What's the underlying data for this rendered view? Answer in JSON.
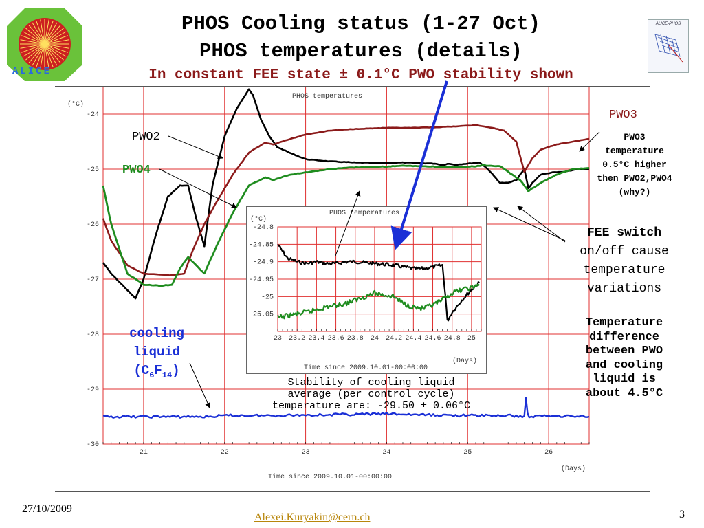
{
  "slide": {
    "title1": "PHOS Cooling status (1-27 Oct)",
    "title2": "PHOS temperatures (details)",
    "title3": "In constant FEE state ± 0.1°C PWO stability shown",
    "date": "27/10/2009",
    "author_email": "Alexei.Kuryakin@cern.ch",
    "page_number": "3",
    "logo_left_text": "ALICE",
    "logo_right_text": "ALICE-PHOS"
  },
  "annotations": {
    "pwo2": "PWO2",
    "pwo4": "PWO4",
    "pwo3": "PWO3",
    "pwo3_note": [
      "PWO3",
      "temperature",
      "0.5°C higher",
      "then PWO2,PWO4",
      "(why?)"
    ],
    "fee_note": [
      "FEE switch",
      "on/off cause",
      "temperature",
      "variations"
    ],
    "diff_note": [
      "Temperature",
      "difference",
      "between PWO",
      "and cooling",
      "liquid is",
      "about 4.5°C"
    ],
    "cooling_word1": "cooling",
    "cooling_word2": "liquid",
    "cooling_formula_open": "(C",
    "cooling_sub1": "6",
    "cooling_F": "F",
    "cooling_sub2": "14",
    "cooling_formula_close": ")",
    "stability_note": [
      "Stability of cooling liquid",
      "average (per control cycle)",
      "temperature are: -29.50 ± 0.06°C"
    ]
  },
  "colors": {
    "pwo2": "#000000",
    "pwo3": "#8b1a1a",
    "pwo4": "#1e8c1e",
    "cooling": "#1a2fd6",
    "arrow": "#1a2fd6",
    "grid": "#e03030",
    "title_red": "#8b1a1a"
  },
  "chart_data": [
    {
      "type": "line",
      "title": "PHOS temperatures",
      "xlabel": "Time since 2009.10.01-00:00:00",
      "xunit": "(Days)",
      "yunit": "(°C)",
      "xlim": [
        20.5,
        26.5
      ],
      "ylim": [
        -30,
        -23.5
      ],
      "x_ticks": [
        21,
        22,
        23,
        24,
        25,
        26
      ],
      "y_ticks": [
        -24,
        -25,
        -26,
        -27,
        -28,
        -29,
        -30
      ],
      "grid": true,
      "series": [
        {
          "name": "PWO2",
          "color": "#000000",
          "x": [
            20.5,
            20.6,
            20.8,
            20.9,
            21.0,
            21.15,
            21.3,
            21.45,
            21.55,
            21.65,
            21.75,
            21.85,
            22.0,
            22.15,
            22.3,
            22.35,
            22.45,
            22.55,
            22.65,
            22.8,
            23.0,
            23.3,
            23.6,
            23.9,
            24.2,
            24.4,
            24.6,
            24.7,
            24.75,
            24.85,
            25.0,
            25.15,
            25.25,
            25.4,
            25.5,
            25.6,
            25.7,
            25.75,
            25.8,
            25.9,
            26.05,
            26.2,
            26.35,
            26.5
          ],
          "y": [
            -26.7,
            -26.9,
            -27.2,
            -27.35,
            -27.0,
            -26.2,
            -25.5,
            -25.3,
            -25.3,
            -25.9,
            -26.4,
            -25.3,
            -24.4,
            -23.9,
            -23.55,
            -23.65,
            -24.1,
            -24.4,
            -24.6,
            -24.7,
            -24.82,
            -24.86,
            -24.88,
            -24.89,
            -24.88,
            -24.89,
            -24.9,
            -24.93,
            -24.9,
            -24.92,
            -24.9,
            -24.88,
            -25.0,
            -25.25,
            -25.25,
            -25.2,
            -25.0,
            -25.35,
            -25.25,
            -25.1,
            -25.06,
            -25.05,
            -25.0,
            -25.0
          ]
        },
        {
          "name": "PWO3",
          "color": "#8b1a1a",
          "x": [
            20.5,
            20.6,
            20.8,
            21.0,
            21.2,
            21.35,
            21.5,
            21.6,
            21.75,
            21.9,
            22.1,
            22.3,
            22.5,
            22.6,
            22.75,
            23.0,
            23.3,
            23.6,
            24.0,
            24.3,
            24.6,
            24.9,
            25.1,
            25.3,
            25.45,
            25.6,
            25.7,
            25.8,
            25.9,
            26.1,
            26.3,
            26.5
          ],
          "y": [
            -25.9,
            -26.3,
            -26.75,
            -26.9,
            -26.92,
            -26.93,
            -26.9,
            -26.5,
            -26.0,
            -25.6,
            -25.1,
            -24.7,
            -24.52,
            -24.55,
            -24.48,
            -24.37,
            -24.3,
            -24.27,
            -24.25,
            -24.25,
            -24.24,
            -24.22,
            -24.2,
            -24.25,
            -24.3,
            -24.5,
            -25.05,
            -24.8,
            -24.65,
            -24.55,
            -24.5,
            -24.45
          ]
        },
        {
          "name": "PWO4",
          "color": "#1e8c1e",
          "x": [
            20.5,
            20.6,
            20.8,
            21.0,
            21.2,
            21.35,
            21.45,
            21.55,
            21.65,
            21.75,
            21.9,
            22.1,
            22.3,
            22.5,
            22.6,
            22.8,
            23.0,
            23.3,
            23.6,
            23.9,
            24.2,
            24.5,
            24.8,
            25.1,
            25.2,
            25.4,
            25.55,
            25.65,
            25.75,
            25.9,
            26.1,
            26.3,
            26.5
          ],
          "y": [
            -25.3,
            -26.0,
            -26.9,
            -27.1,
            -27.12,
            -27.1,
            -26.8,
            -26.6,
            -26.75,
            -26.9,
            -26.4,
            -25.8,
            -25.3,
            -25.15,
            -25.2,
            -25.1,
            -25.06,
            -25.0,
            -24.97,
            -24.96,
            -24.94,
            -24.95,
            -24.97,
            -24.95,
            -24.93,
            -24.95,
            -25.1,
            -25.2,
            -25.4,
            -25.25,
            -25.1,
            -25.0,
            -24.98
          ]
        },
        {
          "name": "cooling liquid",
          "color": "#1a2fd6",
          "x": [
            20.5,
            21.0,
            21.5,
            21.8,
            22.0,
            22.5,
            23.0,
            23.5,
            24.0,
            24.5,
            25.0,
            25.5,
            25.7,
            25.72,
            25.74,
            25.76,
            26.0,
            26.5
          ],
          "y": [
            -29.5,
            -29.5,
            -29.5,
            -29.5,
            -29.48,
            -29.48,
            -29.47,
            -29.46,
            -29.45,
            -29.47,
            -29.48,
            -29.48,
            -29.5,
            -29.15,
            -29.45,
            -29.5,
            -29.48,
            -29.5
          ]
        }
      ]
    },
    {
      "type": "line",
      "title": "PHOS temperatures",
      "xlabel": "Time since 2009.10.01-00:00:00",
      "xunit": "(Days)",
      "yunit": "(°C)",
      "xlim": [
        23,
        25.1
      ],
      "ylim": [
        -25.1,
        -24.8
      ],
      "x_tick_labels": [
        "23",
        "23.2",
        "23.4",
        "23.6",
        "23.8",
        "24",
        "24.2",
        "24.4",
        "24.6",
        "24.8",
        "25"
      ],
      "y_tick_labels": [
        "-24.8",
        "-24.85",
        "-24.9",
        "-24.95",
        "-25",
        "-25.05"
      ],
      "grid": true,
      "series": [
        {
          "name": "PWO2",
          "color": "#000000",
          "x": [
            23.0,
            23.05,
            23.1,
            23.2,
            23.3,
            23.4,
            23.5,
            23.6,
            23.7,
            23.8,
            24.0,
            24.2,
            24.4,
            24.5,
            24.6,
            24.7,
            24.73,
            24.75,
            24.8,
            24.9,
            25.0,
            25.08
          ],
          "y": [
            -24.85,
            -24.87,
            -24.89,
            -24.9,
            -24.905,
            -24.9,
            -24.905,
            -24.905,
            -24.9,
            -24.9,
            -24.905,
            -24.91,
            -24.92,
            -24.92,
            -24.915,
            -24.91,
            -24.995,
            -25.07,
            -25.045,
            -25.01,
            -24.98,
            -24.96
          ]
        },
        {
          "name": "PWO4",
          "color": "#1e8c1e",
          "x": [
            23.0,
            23.1,
            23.3,
            23.5,
            23.7,
            23.9,
            24.0,
            24.1,
            24.2,
            24.3,
            24.4,
            24.5,
            24.6,
            24.7,
            24.8,
            24.9,
            25.0,
            25.08
          ],
          "y": [
            -25.06,
            -25.055,
            -25.045,
            -25.03,
            -25.02,
            -25.0,
            -24.99,
            -24.995,
            -25.0,
            -25.02,
            -25.03,
            -25.035,
            -25.025,
            -25.01,
            -24.99,
            -24.98,
            -24.975,
            -24.965
          ]
        }
      ]
    }
  ]
}
